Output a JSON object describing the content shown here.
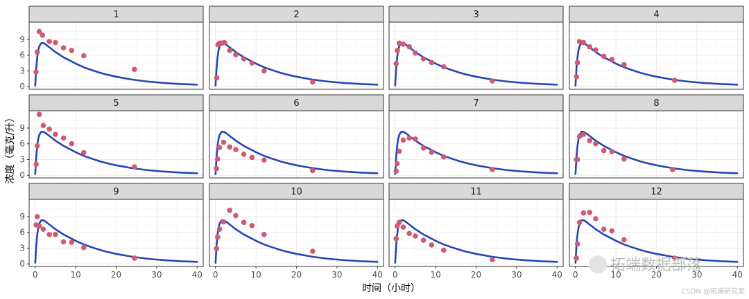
{
  "chart_data": {
    "type": "scatter",
    "xlabel": "时间（小时）",
    "ylabel": "浓度（毫克/升）",
    "xlim": [
      -1.5,
      41.5
    ],
    "ylim": [
      -0.5,
      12.3
    ],
    "x_ticks": [
      0,
      10,
      20,
      30,
      40
    ],
    "y_ticks": [
      0,
      3,
      6,
      9
    ],
    "grid": true,
    "facet_layout": {
      "rows": 3,
      "cols": 4
    },
    "colors": {
      "points": "#d05a6e",
      "curve": "#2545b3",
      "strip": "#d9d9d9"
    },
    "curve_model": {
      "description": "single fitted curve shared by all panels",
      "x": [
        0,
        0.25,
        0.5,
        0.75,
        1,
        1.5,
        2,
        2.5,
        3,
        4,
        5,
        6,
        7,
        8,
        10,
        12,
        14,
        16,
        18,
        20,
        24,
        28,
        32,
        36,
        40
      ],
      "y": [
        0.2,
        3.4,
        5.6,
        6.9,
        7.7,
        8.3,
        8.3,
        8.1,
        7.8,
        7.2,
        6.6,
        6.1,
        5.6,
        5.2,
        4.4,
        3.7,
        3.15,
        2.65,
        2.25,
        1.9,
        1.35,
        0.95,
        0.7,
        0.5,
        0.38
      ]
    },
    "panels": [
      {
        "label": "1",
        "points": [
          [
            0.2,
            2.8
          ],
          [
            0.5,
            6.6
          ],
          [
            1,
            10.5
          ],
          [
            1.8,
            9.8
          ],
          [
            3.5,
            8.6
          ],
          [
            5,
            8.4
          ],
          [
            7,
            7.4
          ],
          [
            9,
            6.9
          ],
          [
            12,
            5.9
          ],
          [
            24.5,
            3.3
          ]
        ]
      },
      {
        "label": "2",
        "points": [
          [
            0.3,
            1.7
          ],
          [
            0.6,
            8.0
          ],
          [
            1,
            8.3
          ],
          [
            1.6,
            8.3
          ],
          [
            2.2,
            8.4
          ],
          [
            3.5,
            6.9
          ],
          [
            5,
            6.1
          ],
          [
            7,
            5.3
          ],
          [
            9,
            4.5
          ],
          [
            12,
            3.0
          ],
          [
            24,
            0.9
          ]
        ]
      },
      {
        "label": "3",
        "points": [
          [
            0.25,
            4.4
          ],
          [
            0.55,
            6.9
          ],
          [
            1,
            8.3
          ],
          [
            2,
            8.1
          ],
          [
            3.5,
            7.6
          ],
          [
            5,
            6.4
          ],
          [
            7,
            5.3
          ],
          [
            9,
            4.6
          ],
          [
            12,
            3.8
          ],
          [
            24,
            1.1
          ]
        ]
      },
      {
        "label": "4",
        "points": [
          [
            0.25,
            1.9
          ],
          [
            0.5,
            4.6
          ],
          [
            1,
            8.6
          ],
          [
            2,
            8.4
          ],
          [
            3.5,
            7.6
          ],
          [
            5,
            7.0
          ],
          [
            7,
            5.8
          ],
          [
            9,
            5.2
          ],
          [
            12,
            4.2
          ],
          [
            24.5,
            1.2
          ]
        ]
      },
      {
        "label": "5",
        "points": [
          [
            0.25,
            2.1
          ],
          [
            0.5,
            5.6
          ],
          [
            1,
            11.6
          ],
          [
            2,
            9.5
          ],
          [
            3.5,
            8.8
          ],
          [
            5,
            7.8
          ],
          [
            7,
            7.1
          ],
          [
            9,
            6.0
          ],
          [
            12,
            4.3
          ],
          [
            24.5,
            1.6
          ]
        ]
      },
      {
        "label": "6",
        "points": [
          [
            0.25,
            1.3
          ],
          [
            0.5,
            3.1
          ],
          [
            1,
            5.3
          ],
          [
            2,
            6.3
          ],
          [
            3.5,
            5.4
          ],
          [
            5,
            4.9
          ],
          [
            7,
            4.0
          ],
          [
            9,
            3.4
          ],
          [
            12,
            2.9
          ],
          [
            24,
            0.9
          ]
        ]
      },
      {
        "label": "7",
        "points": [
          [
            0.25,
            0.8
          ],
          [
            0.5,
            2.2
          ],
          [
            1,
            4.6
          ],
          [
            2,
            6.7
          ],
          [
            3.5,
            7.1
          ],
          [
            5,
            6.9
          ],
          [
            7,
            5.2
          ],
          [
            9,
            4.4
          ],
          [
            12,
            3.5
          ],
          [
            24,
            1.1
          ]
        ]
      },
      {
        "label": "8",
        "points": [
          [
            0.25,
            3.0
          ],
          [
            0.5,
            3.0
          ],
          [
            1,
            7.4
          ],
          [
            2,
            7.8
          ],
          [
            3.5,
            6.6
          ],
          [
            5,
            6.0
          ],
          [
            7,
            4.7
          ],
          [
            9,
            4.5
          ],
          [
            12,
            3.1
          ],
          [
            24,
            1.1
          ]
        ]
      },
      {
        "label": "9",
        "points": [
          [
            0.25,
            7.4
          ],
          [
            0.5,
            9.0
          ],
          [
            1,
            7.2
          ],
          [
            2,
            6.6
          ],
          [
            3.5,
            5.6
          ],
          [
            5,
            5.6
          ],
          [
            7,
            4.2
          ],
          [
            9,
            4.1
          ],
          [
            12,
            3.1
          ],
          [
            24.5,
            1.1
          ]
        ]
      },
      {
        "label": "10",
        "points": [
          [
            0.25,
            2.9
          ],
          [
            0.5,
            5.1
          ],
          [
            1,
            6.6
          ],
          [
            2,
            8.0
          ],
          [
            3.5,
            10.2
          ],
          [
            5,
            9.2
          ],
          [
            7,
            7.9
          ],
          [
            9,
            7.3
          ],
          [
            12,
            5.6
          ],
          [
            24,
            2.4
          ]
        ]
      },
      {
        "label": "11",
        "points": [
          [
            0.25,
            4.8
          ],
          [
            0.5,
            7.2
          ],
          [
            1,
            7.9
          ],
          [
            2,
            7.0
          ],
          [
            3.5,
            5.8
          ],
          [
            5,
            5.3
          ],
          [
            7,
            4.5
          ],
          [
            9,
            3.6
          ],
          [
            12,
            2.6
          ],
          [
            24,
            0.8
          ]
        ]
      },
      {
        "label": "12",
        "points": [
          [
            0.25,
            1.1
          ],
          [
            0.5,
            3.8
          ],
          [
            1,
            7.9
          ],
          [
            2,
            9.7
          ],
          [
            3.5,
            9.8
          ],
          [
            5,
            8.6
          ],
          [
            7,
            6.6
          ],
          [
            9,
            6.3
          ],
          [
            12,
            4.6
          ],
          [
            24.5,
            1.1
          ]
        ]
      }
    ]
  },
  "watermark": {
    "text": "拓端数据部落",
    "credit": "CSDN @拓端研究室"
  }
}
